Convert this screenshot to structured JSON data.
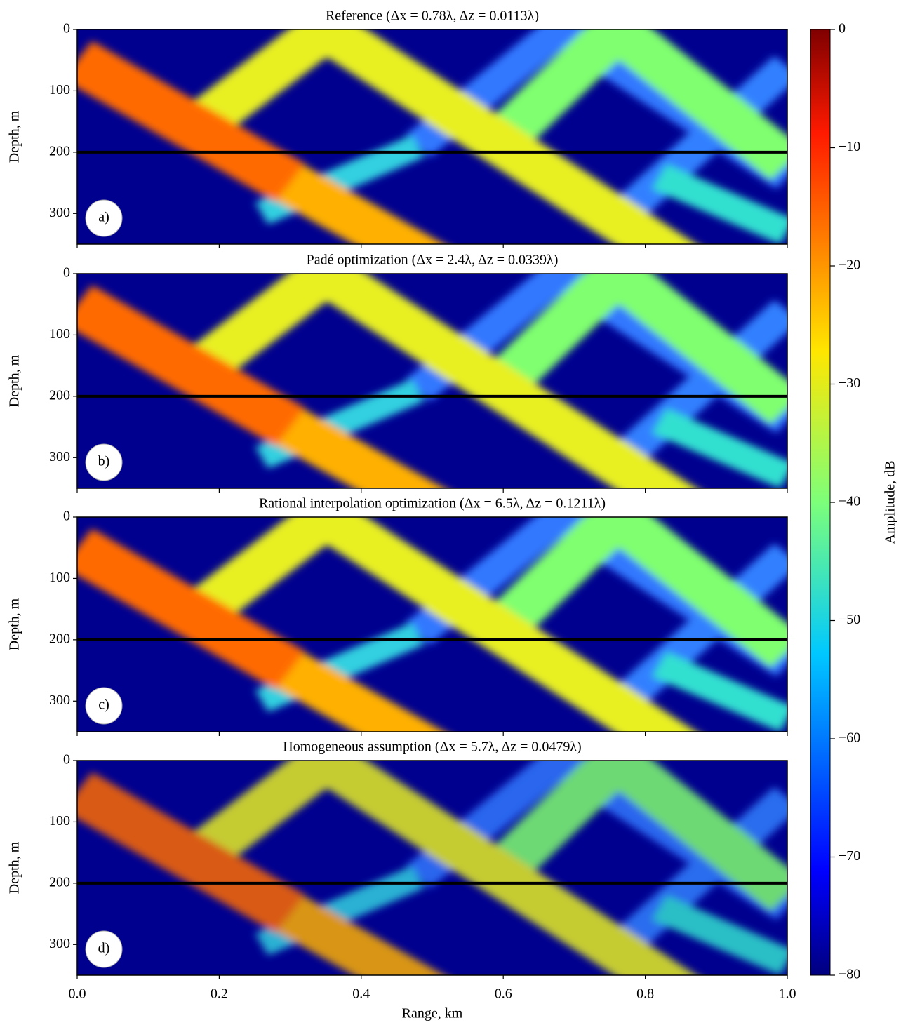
{
  "chart_data": [
    {
      "type": "heatmap",
      "title": "Reference (Δx = 0.78λ, Δz = 0.0113λ)",
      "panel_label": "a)",
      "ylabel": "Depth, m",
      "ylim": [
        350,
        0
      ],
      "yticks": [
        0,
        100,
        200,
        300
      ],
      "interface_depth": 200,
      "xlim": [
        0,
        1
      ]
    },
    {
      "type": "heatmap",
      "title": "Padé optimization (Δx = 2.4λ, Δz = 0.0339λ)",
      "panel_label": "b)",
      "ylabel": "Depth, m",
      "ylim": [
        350,
        0
      ],
      "yticks": [
        0,
        100,
        200,
        300
      ],
      "interface_depth": 200,
      "xlim": [
        0,
        1
      ]
    },
    {
      "type": "heatmap",
      "title": "Rational interpolation optimization (Δx = 6.5λ, Δz = 0.1211λ)",
      "panel_label": "c)",
      "ylabel": "Depth, m",
      "ylim": [
        350,
        0
      ],
      "yticks": [
        0,
        100,
        200,
        300
      ],
      "interface_depth": 200,
      "xlim": [
        0,
        1
      ]
    },
    {
      "type": "heatmap",
      "title": "Homogeneous assumption (Δx = 5.7λ, Δz = 0.0479λ)",
      "panel_label": "d)",
      "ylabel": "Depth, m",
      "ylim": [
        350,
        0
      ],
      "yticks": [
        0,
        100,
        200,
        300
      ],
      "interface_depth": 200,
      "xlim": [
        0,
        1
      ],
      "xlabel": "Range, km",
      "xticks": [
        {
          "value": 0,
          "label": "0.0"
        },
        {
          "value": 0.2,
          "label": "0.2"
        },
        {
          "value": 0.4,
          "label": "0.4"
        },
        {
          "value": 0.6,
          "label": "0.6"
        },
        {
          "value": 0.8,
          "label": "0.8"
        },
        {
          "value": 1,
          "label": "1.0"
        }
      ]
    }
  ],
  "colorbar": {
    "label": "Amplitude, dB",
    "lim": [
      -80,
      0
    ],
    "ticks": [
      0,
      {
        "value": -10,
        "label": "−10"
      },
      {
        "value": -20,
        "label": "−20"
      },
      {
        "value": -30,
        "label": "−30"
      },
      {
        "value": -40,
        "label": "−40"
      },
      {
        "value": -50,
        "label": "−50"
      },
      {
        "value": -60,
        "label": "−60"
      },
      {
        "value": -70,
        "label": "−70"
      },
      {
        "value": -80,
        "label": "−80"
      }
    ]
  }
}
